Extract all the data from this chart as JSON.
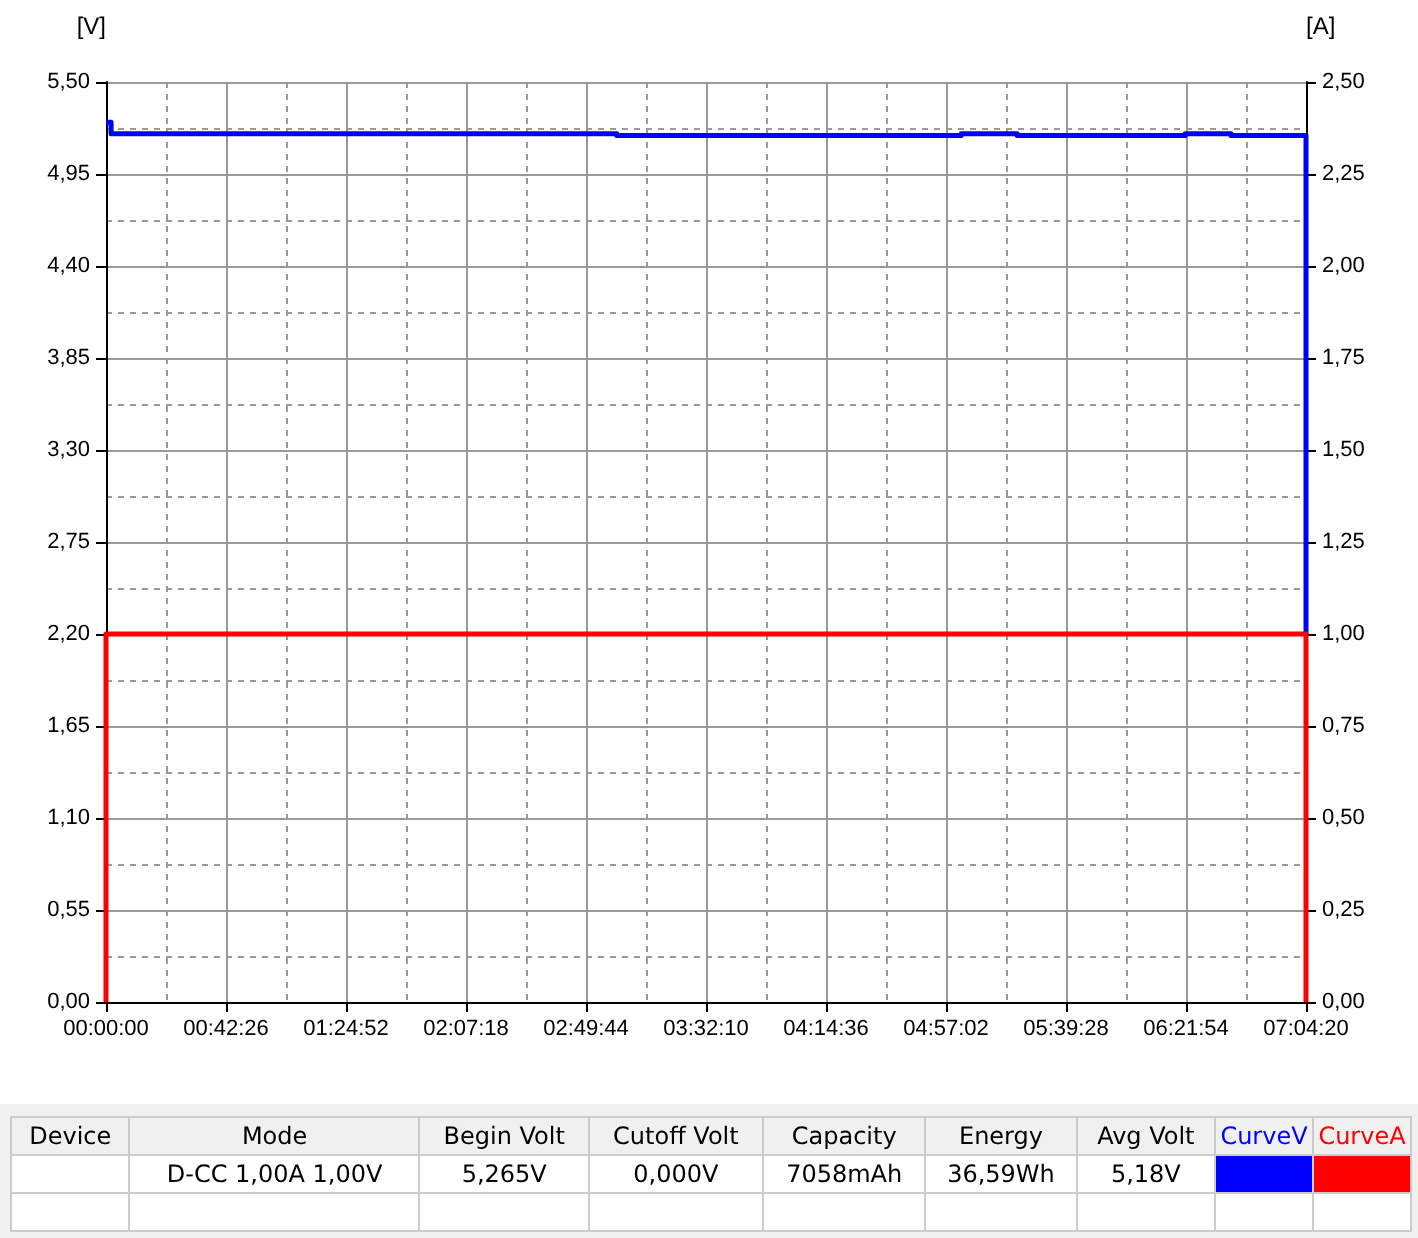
{
  "chart_data": {
    "type": "line",
    "ylabel": "[V]",
    "y2label": "[A]",
    "xlim": [
      0,
      7.07222
    ],
    "xticks": [
      {
        "value": 0,
        "label": "00:00:00"
      },
      {
        "value": 0.70722,
        "label": "00:42:26"
      },
      {
        "value": 1.41444,
        "label": "01:24:52"
      },
      {
        "value": 2.12167,
        "label": "02:07:18"
      },
      {
        "value": 2.82889,
        "label": "02:49:44"
      },
      {
        "value": 3.53611,
        "label": "03:32:10"
      },
      {
        "value": 4.24333,
        "label": "04:14:36"
      },
      {
        "value": 4.95056,
        "label": "04:57:02"
      },
      {
        "value": 5.65778,
        "label": "05:39:28"
      },
      {
        "value": 6.365,
        "label": "06:21:54"
      },
      {
        "value": 7.07222,
        "label": "07:04:20"
      }
    ],
    "ylim": [
      0,
      5.5
    ],
    "yticks": [
      {
        "value": 0,
        "label": "0,00"
      },
      {
        "value": 0.55,
        "label": "0,55"
      },
      {
        "value": 1.1,
        "label": "1,10"
      },
      {
        "value": 1.65,
        "label": "1,65"
      },
      {
        "value": 2.2,
        "label": "2,20"
      },
      {
        "value": 2.75,
        "label": "2,75"
      },
      {
        "value": 3.3,
        "label": "3,30"
      },
      {
        "value": 3.85,
        "label": "3,85"
      },
      {
        "value": 4.4,
        "label": "4,40"
      },
      {
        "value": 4.95,
        "label": "4,95"
      },
      {
        "value": 5.5,
        "label": "5,50"
      }
    ],
    "y2lim": [
      0,
      2.5
    ],
    "y2ticks": [
      {
        "value": 0,
        "label": "0,00"
      },
      {
        "value": 0.25,
        "label": "0,25"
      },
      {
        "value": 0.5,
        "label": "0,50"
      },
      {
        "value": 0.75,
        "label": "0,75"
      },
      {
        "value": 1,
        "label": "1,00"
      },
      {
        "value": 1.25,
        "label": "1,25"
      },
      {
        "value": 1.5,
        "label": "1,50"
      },
      {
        "value": 1.75,
        "label": "1,75"
      },
      {
        "value": 2,
        "label": "2,00"
      },
      {
        "value": 2.25,
        "label": "2,25"
      },
      {
        "value": 2.5,
        "label": "2,50"
      }
    ],
    "series": [
      {
        "name": "CurveV",
        "color": "#0000ff",
        "x": [
          0,
          0,
          0.03,
          0.03,
          3.01,
          3.01,
          5.04,
          5.04,
          5.37,
          5.37,
          6.36,
          6.36,
          6.63,
          6.63,
          7.07222,
          7.07222
        ],
        "values": [
          5.26,
          5.26,
          5.26,
          5.19,
          5.19,
          5.18,
          5.18,
          5.19,
          5.19,
          5.18,
          5.18,
          5.19,
          5.19,
          5.18,
          5.18,
          2.2
        ]
      },
      {
        "name": "CurveA",
        "color": "#ff0000",
        "axis": "y2",
        "x": [
          0,
          0,
          7.07222,
          7.07222
        ],
        "values": [
          0,
          1,
          1,
          0
        ]
      }
    ],
    "grid": true,
    "legend": "bottom",
    "marker": "none",
    "line_style": "solid",
    "annotations": [
      "Device",
      "Mode",
      "Begin Volt",
      "Cutoff Volt",
      "Capacity",
      "Energy",
      "Avg Volt",
      "D-CC 1,00A 1,00V",
      "5,265V",
      "0,000V",
      "7058mAh",
      "36,59Wh",
      "5,18V"
    ]
  }
}
